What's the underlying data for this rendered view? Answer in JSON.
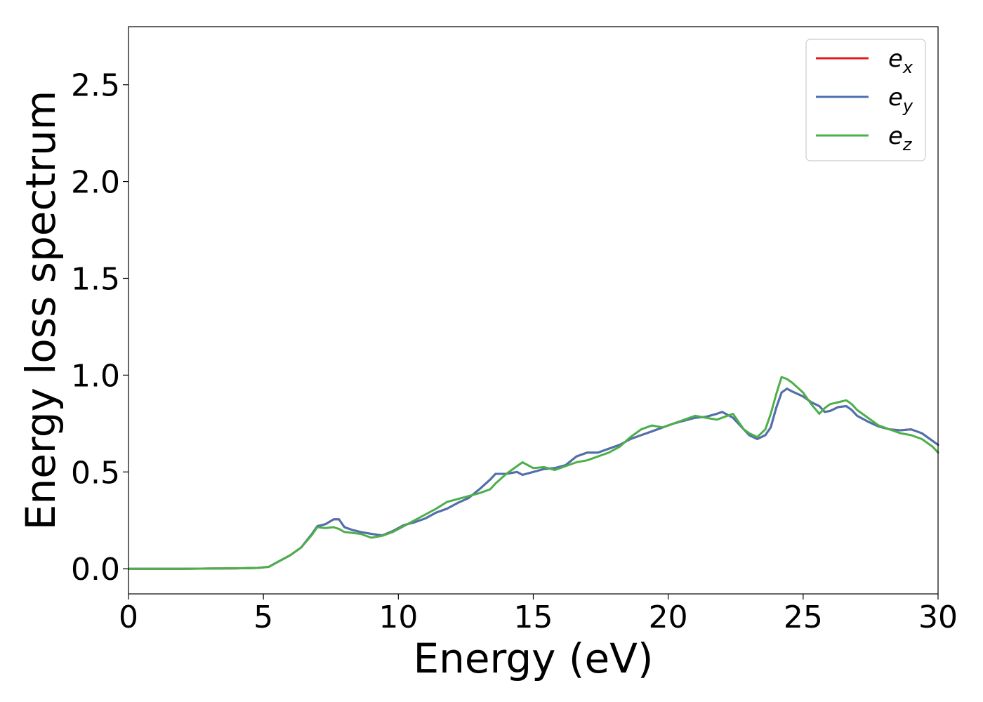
{
  "chart_data": {
    "type": "line",
    "title": "",
    "xlabel": "Energy (eV)",
    "ylabel": "Energy loss spectrum",
    "xlim": [
      0,
      30
    ],
    "ylim": [
      -0.13,
      2.8
    ],
    "xticks": [
      0,
      5,
      10,
      15,
      20,
      25,
      30
    ],
    "xtick_labels": [
      "0",
      "5",
      "10",
      "15",
      "20",
      "25",
      "30"
    ],
    "yticks": [
      0.0,
      0.5,
      1.0,
      1.5,
      2.0,
      2.5
    ],
    "ytick_labels": [
      "0.0",
      "0.5",
      "1.0",
      "1.5",
      "2.0",
      "2.5"
    ],
    "grid": false,
    "legend_position": "top-right",
    "series": [
      {
        "name": "e_x",
        "legend_base": "e",
        "legend_sub": "x",
        "color": "#e41a1c",
        "x": [
          0,
          1,
          2,
          3,
          4,
          4.8,
          5.2,
          5.6,
          6,
          6.4,
          6.8,
          7.0,
          7.3,
          7.6,
          7.8,
          8.0,
          8.3,
          8.6,
          9.0,
          9.4,
          9.8,
          10.2,
          10.6,
          11.0,
          11.4,
          11.8,
          12.2,
          12.6,
          13.0,
          13.4,
          13.6,
          14.0,
          14.4,
          14.6,
          15.0,
          15.4,
          15.8,
          16.2,
          16.6,
          17.0,
          17.4,
          17.8,
          18.2,
          18.6,
          19.0,
          19.4,
          19.8,
          20.2,
          20.6,
          21.0,
          21.4,
          21.8,
          22.0,
          22.4,
          22.8,
          23.0,
          23.3,
          23.6,
          23.8,
          24.0,
          24.2,
          24.4,
          24.6,
          25.0,
          25.3,
          25.6,
          25.8,
          26.0,
          26.3,
          26.6,
          26.8,
          27.0,
          27.4,
          27.8,
          28.2,
          28.6,
          29.0,
          29.4,
          29.8,
          30.0
        ],
        "values": [
          0,
          0,
          0,
          0.001,
          0.002,
          0.004,
          0.01,
          0.04,
          0.07,
          0.11,
          0.18,
          0.22,
          0.23,
          0.255,
          0.255,
          0.215,
          0.2,
          0.19,
          0.18,
          0.172,
          0.195,
          0.225,
          0.24,
          0.26,
          0.29,
          0.31,
          0.34,
          0.365,
          0.41,
          0.46,
          0.49,
          0.49,
          0.5,
          0.485,
          0.5,
          0.515,
          0.52,
          0.535,
          0.58,
          0.6,
          0.6,
          0.62,
          0.64,
          0.67,
          0.69,
          0.71,
          0.73,
          0.75,
          0.765,
          0.78,
          0.785,
          0.8,
          0.81,
          0.78,
          0.72,
          0.69,
          0.67,
          0.69,
          0.73,
          0.83,
          0.91,
          0.93,
          0.915,
          0.89,
          0.86,
          0.84,
          0.81,
          0.815,
          0.835,
          0.84,
          0.82,
          0.79,
          0.76,
          0.735,
          0.72,
          0.715,
          0.72,
          0.7,
          0.66,
          0.64
        ]
      },
      {
        "name": "e_y",
        "legend_base": "e",
        "legend_sub": "y",
        "color": "#4a72b0",
        "x": [
          0,
          1,
          2,
          3,
          4,
          4.8,
          5.2,
          5.6,
          6,
          6.4,
          6.8,
          7.0,
          7.3,
          7.6,
          7.8,
          8.0,
          8.3,
          8.6,
          9.0,
          9.4,
          9.8,
          10.2,
          10.6,
          11.0,
          11.4,
          11.8,
          12.2,
          12.6,
          13.0,
          13.4,
          13.6,
          14.0,
          14.4,
          14.6,
          15.0,
          15.4,
          15.8,
          16.2,
          16.6,
          17.0,
          17.4,
          17.8,
          18.2,
          18.6,
          19.0,
          19.4,
          19.8,
          20.2,
          20.6,
          21.0,
          21.4,
          21.8,
          22.0,
          22.4,
          22.8,
          23.0,
          23.3,
          23.6,
          23.8,
          24.0,
          24.2,
          24.4,
          24.6,
          25.0,
          25.3,
          25.6,
          25.8,
          26.0,
          26.3,
          26.6,
          26.8,
          27.0,
          27.4,
          27.8,
          28.2,
          28.6,
          29.0,
          29.4,
          29.8,
          30.0
        ],
        "values": [
          0,
          0,
          0,
          0.001,
          0.002,
          0.004,
          0.01,
          0.04,
          0.07,
          0.11,
          0.18,
          0.22,
          0.23,
          0.255,
          0.255,
          0.215,
          0.2,
          0.19,
          0.18,
          0.172,
          0.195,
          0.225,
          0.24,
          0.26,
          0.29,
          0.31,
          0.34,
          0.365,
          0.41,
          0.46,
          0.49,
          0.49,
          0.5,
          0.485,
          0.5,
          0.515,
          0.52,
          0.535,
          0.58,
          0.6,
          0.6,
          0.62,
          0.64,
          0.67,
          0.69,
          0.71,
          0.73,
          0.75,
          0.765,
          0.78,
          0.785,
          0.8,
          0.81,
          0.78,
          0.72,
          0.69,
          0.67,
          0.69,
          0.73,
          0.83,
          0.91,
          0.93,
          0.915,
          0.89,
          0.86,
          0.84,
          0.81,
          0.815,
          0.835,
          0.84,
          0.82,
          0.79,
          0.76,
          0.735,
          0.72,
          0.715,
          0.72,
          0.7,
          0.66,
          0.64
        ]
      },
      {
        "name": "e_z",
        "legend_base": "e",
        "legend_sub": "z",
        "color": "#4daf4a",
        "x": [
          0,
          1,
          2,
          3,
          4,
          4.8,
          5.2,
          5.6,
          6,
          6.4,
          6.8,
          7.0,
          7.3,
          7.6,
          7.8,
          8.0,
          8.3,
          8.6,
          9.0,
          9.4,
          9.8,
          10.2,
          10.6,
          11.0,
          11.4,
          11.8,
          12.2,
          12.6,
          13.0,
          13.4,
          13.6,
          14.0,
          14.4,
          14.6,
          15.0,
          15.4,
          15.8,
          16.2,
          16.6,
          17.0,
          17.4,
          17.8,
          18.2,
          18.6,
          19.0,
          19.4,
          19.8,
          20.2,
          20.6,
          21.0,
          21.4,
          21.8,
          22.0,
          22.4,
          22.8,
          23.0,
          23.3,
          23.6,
          23.8,
          24.0,
          24.2,
          24.4,
          24.6,
          25.0,
          25.3,
          25.6,
          25.8,
          26.0,
          26.3,
          26.6,
          26.8,
          27.0,
          27.4,
          27.8,
          28.2,
          28.6,
          29.0,
          29.4,
          29.8,
          30.0
        ],
        "values": [
          0,
          0,
          0,
          0.001,
          0.002,
          0.004,
          0.01,
          0.04,
          0.07,
          0.11,
          0.175,
          0.215,
          0.21,
          0.215,
          0.205,
          0.19,
          0.185,
          0.18,
          0.16,
          0.17,
          0.19,
          0.22,
          0.25,
          0.28,
          0.31,
          0.345,
          0.36,
          0.375,
          0.39,
          0.41,
          0.44,
          0.49,
          0.53,
          0.55,
          0.52,
          0.525,
          0.51,
          0.53,
          0.55,
          0.56,
          0.58,
          0.6,
          0.63,
          0.68,
          0.72,
          0.74,
          0.73,
          0.75,
          0.77,
          0.79,
          0.78,
          0.77,
          0.78,
          0.8,
          0.72,
          0.7,
          0.68,
          0.72,
          0.8,
          0.9,
          0.99,
          0.98,
          0.96,
          0.91,
          0.85,
          0.8,
          0.83,
          0.85,
          0.86,
          0.87,
          0.85,
          0.82,
          0.78,
          0.74,
          0.72,
          0.7,
          0.69,
          0.67,
          0.63,
          0.6
        ]
      }
    ]
  }
}
